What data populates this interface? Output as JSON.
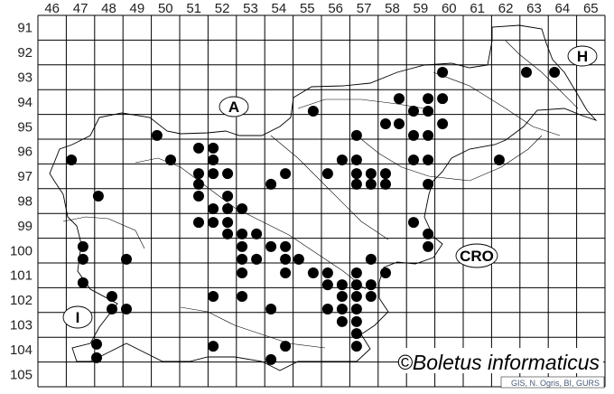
{
  "map": {
    "columns": [
      "46",
      "47",
      "48",
      "49",
      "50",
      "51",
      "52",
      "53",
      "54",
      "55",
      "56",
      "57",
      "58",
      "59",
      "60",
      "61",
      "62",
      "63",
      "64",
      "65"
    ],
    "rows": [
      "91",
      "92",
      "93",
      "94",
      "95",
      "96",
      "97",
      "98",
      "99",
      "100",
      "101",
      "102",
      "103",
      "104",
      "105"
    ],
    "region_labels": {
      "austria": "A",
      "hungary": "H",
      "croatia": "CRO",
      "italy": "I"
    },
    "copyright": "©Boletus informaticus",
    "credit": "GIS, N. Ogris, BI, GURS",
    "dot_color": "#000000",
    "dots": [
      [
        60.27,
        93.3
      ],
      [
        63.23,
        93.3
      ],
      [
        64.22,
        93.3
      ],
      [
        58.74,
        94.36
      ],
      [
        59.76,
        94.36
      ],
      [
        60.27,
        94.36
      ],
      [
        55.71,
        94.87
      ],
      [
        59.25,
        94.87
      ],
      [
        59.76,
        94.87
      ],
      [
        58.26,
        95.38
      ],
      [
        58.74,
        95.38
      ],
      [
        60.27,
        95.38
      ],
      [
        50.2,
        95.85
      ],
      [
        57.24,
        95.85
      ],
      [
        59.25,
        95.85
      ],
      [
        59.76,
        95.85
      ],
      [
        51.67,
        96.36
      ],
      [
        52.18,
        96.36
      ],
      [
        47.18,
        96.84
      ],
      [
        50.68,
        96.84
      ],
      [
        52.18,
        96.84
      ],
      [
        56.73,
        96.84
      ],
      [
        57.24,
        96.84
      ],
      [
        59.25,
        96.84
      ],
      [
        59.76,
        96.84
      ],
      [
        62.27,
        96.84
      ],
      [
        51.67,
        97.39
      ],
      [
        52.18,
        97.39
      ],
      [
        52.69,
        97.39
      ],
      [
        54.73,
        97.39
      ],
      [
        56.22,
        97.39
      ],
      [
        57.24,
        97.39
      ],
      [
        57.75,
        97.39
      ],
      [
        58.26,
        97.39
      ],
      [
        51.67,
        97.82
      ],
      [
        54.22,
        97.82
      ],
      [
        57.24,
        97.82
      ],
      [
        57.75,
        97.82
      ],
      [
        58.26,
        97.82
      ],
      [
        59.76,
        97.82
      ],
      [
        48.13,
        98.3
      ],
      [
        51.67,
        98.3
      ],
      [
        52.69,
        98.3
      ],
      [
        52.18,
        98.81
      ],
      [
        52.69,
        98.81
      ],
      [
        53.2,
        98.81
      ],
      [
        51.67,
        99.36
      ],
      [
        52.18,
        99.36
      ],
      [
        52.69,
        99.36
      ],
      [
        59.25,
        99.36
      ],
      [
        52.69,
        99.83
      ],
      [
        53.2,
        99.83
      ],
      [
        53.71,
        99.83
      ],
      [
        59.76,
        99.83
      ],
      [
        47.59,
        100.34
      ],
      [
        53.2,
        100.34
      ],
      [
        54.22,
        100.34
      ],
      [
        54.73,
        100.34
      ],
      [
        59.76,
        100.34
      ],
      [
        47.59,
        100.85
      ],
      [
        49.12,
        100.85
      ],
      [
        53.2,
        100.85
      ],
      [
        53.71,
        100.85
      ],
      [
        54.73,
        100.85
      ],
      [
        55.2,
        100.85
      ],
      [
        57.75,
        100.85
      ],
      [
        53.2,
        101.4
      ],
      [
        54.73,
        101.4
      ],
      [
        55.71,
        101.4
      ],
      [
        56.22,
        101.4
      ],
      [
        57.24,
        101.4
      ],
      [
        58.26,
        101.4
      ],
      [
        47.59,
        101.8
      ],
      [
        56.22,
        101.88
      ],
      [
        56.73,
        101.88
      ],
      [
        57.24,
        101.88
      ],
      [
        57.75,
        101.88
      ],
      [
        48.61,
        102.35
      ],
      [
        52.18,
        102.35
      ],
      [
        53.2,
        102.35
      ],
      [
        56.73,
        102.35
      ],
      [
        57.24,
        102.35
      ],
      [
        57.75,
        102.35
      ],
      [
        48.61,
        102.86
      ],
      [
        49.12,
        102.86
      ],
      [
        54.22,
        102.86
      ],
      [
        56.22,
        102.86
      ],
      [
        56.73,
        102.86
      ],
      [
        57.24,
        102.86
      ],
      [
        56.73,
        103.37
      ],
      [
        57.24,
        103.37
      ],
      [
        57.24,
        103.85
      ],
      [
        48.07,
        104.28
      ],
      [
        52.18,
        104.36
      ],
      [
        54.73,
        104.36
      ],
      [
        57.24,
        104.36
      ],
      [
        48.07,
        104.83
      ],
      [
        54.22,
        104.9
      ]
    ]
  }
}
